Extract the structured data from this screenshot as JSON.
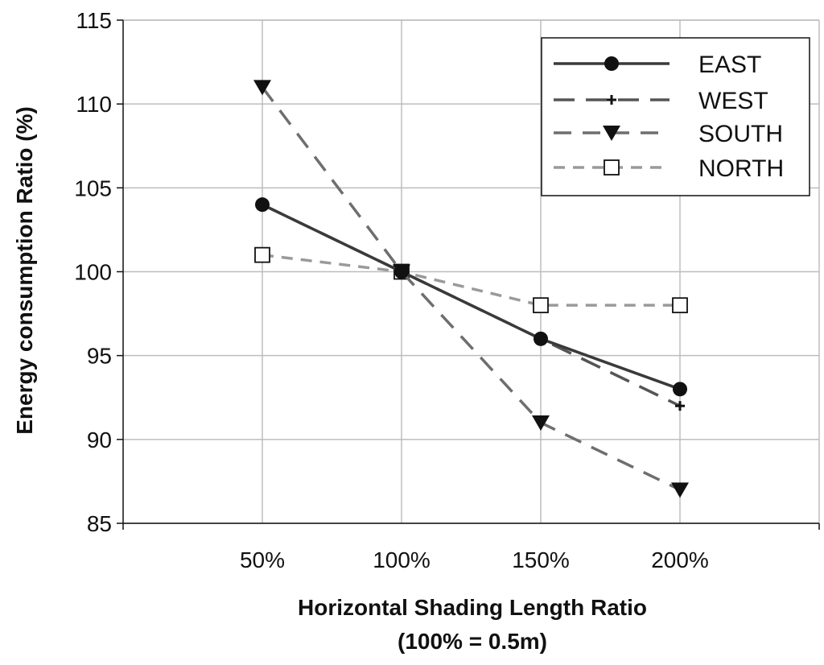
{
  "chart_data": {
    "type": "line",
    "title": "",
    "xlabel": "Horizontal Shading Length Ratio",
    "xlabel_sub": "(100% = 0.5m)",
    "ylabel": "Energy consumption Ratio (%)",
    "categories": [
      "50%",
      "100%",
      "150%",
      "200%"
    ],
    "ylim": [
      85,
      115
    ],
    "yticks": [
      85,
      90,
      95,
      100,
      105,
      110,
      115
    ],
    "grid": true,
    "legend_position": "top-right",
    "series": [
      {
        "name": "EAST",
        "values": [
          104,
          100,
          96,
          93
        ],
        "color": "#3a3a3a",
        "line": "solid",
        "marker": "circle"
      },
      {
        "name": "WEST",
        "values": [
          104,
          100,
          96,
          92
        ],
        "color": "#555555",
        "line": "long-dash",
        "marker": "plus"
      },
      {
        "name": "SOUTH",
        "values": [
          111,
          100,
          91,
          87
        ],
        "color": "#6e6e6e",
        "line": "dash",
        "marker": "triangle-down"
      },
      {
        "name": "NORTH",
        "values": [
          101,
          100,
          98,
          98
        ],
        "color": "#9a9a9a",
        "line": "short-dash",
        "marker": "square-open"
      }
    ]
  }
}
